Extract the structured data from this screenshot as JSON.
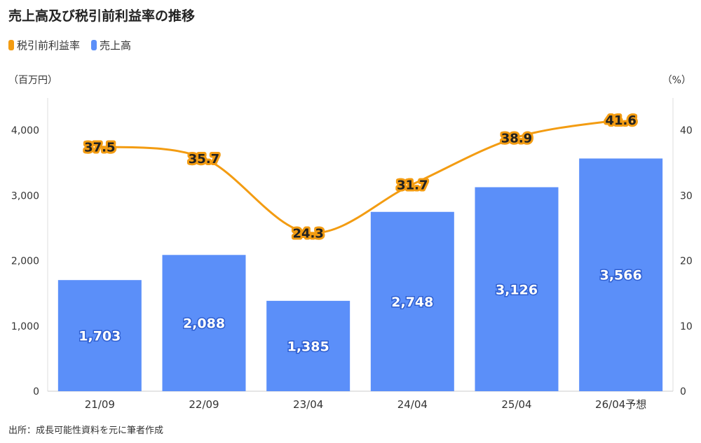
{
  "title": "売上高及び税引前利益率の推移",
  "legend": [
    {
      "label": "税引前利益率",
      "color": "#f39c12"
    },
    {
      "label": "売上高",
      "color": "#5b8ff9"
    }
  ],
  "unit_left": "（百万円）",
  "unit_right": "（%）",
  "source": "出所：成長可能性資料を元に筆者作成",
  "chart_data": {
    "type": "bar",
    "categories": [
      "21/09",
      "22/09",
      "23/04",
      "24/04",
      "25/04",
      "26/04予想"
    ],
    "series": [
      {
        "name": "売上高",
        "type": "bar",
        "axis": "left",
        "color": "#5b8ff9",
        "values": [
          1703,
          2088,
          1385,
          2748,
          3126,
          3566
        ],
        "labels": [
          "1,703",
          "2,088",
          "1,385",
          "2,748",
          "3,126",
          "3,566"
        ]
      },
      {
        "name": "税引前利益率",
        "type": "line",
        "axis": "right",
        "color": "#f39c12",
        "values": [
          37.5,
          35.7,
          24.3,
          31.7,
          38.9,
          41.6
        ],
        "labels": [
          "37.5",
          "35.7",
          "24.3",
          "31.7",
          "38.9",
          "41.6"
        ]
      }
    ],
    "y_left": {
      "ylim": [
        0,
        4000
      ],
      "ticks": [
        0,
        1000,
        2000,
        3000,
        4000
      ],
      "tick_labels": [
        "0",
        "1,000",
        "2,000",
        "3,000",
        "4,000"
      ]
    },
    "y_right": {
      "ylim": [
        0,
        40
      ],
      "ticks": [
        0,
        10,
        20,
        30,
        40
      ],
      "tick_labels": [
        "0",
        "10",
        "20",
        "30",
        "40"
      ]
    },
    "grid": false,
    "legend_position": "top-left"
  }
}
